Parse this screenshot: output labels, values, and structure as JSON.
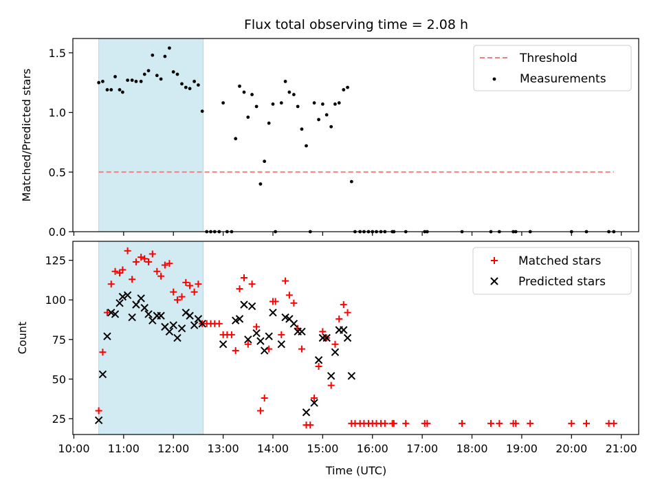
{
  "chart_data": {
    "type": "scatter",
    "title": "Flux total observing time = 2.08 h",
    "xlabel": "Time (UTC)",
    "x_ticks": [
      "10:00",
      "11:00",
      "12:00",
      "13:00",
      "14:00",
      "15:00",
      "16:00",
      "17:00",
      "18:00",
      "19:00",
      "20:00",
      "21:00"
    ],
    "xlim_hours": [
      9.98,
      21.35
    ],
    "highlight_span_hours": [
      10.5,
      12.6
    ],
    "highlight_color": "#add8e6",
    "top": {
      "ylabel": "Matched/Predicted stars",
      "ylim": [
        0,
        1.62
      ],
      "y_ticks": [
        "0.0",
        "0.5",
        "1.0",
        "1.5"
      ],
      "y_tick_values": [
        0,
        0.5,
        1.0,
        1.5
      ],
      "threshold": {
        "name": "Threshold",
        "value": 0.5,
        "x_range": [
          10.5,
          20.85
        ],
        "color": "#f08080"
      },
      "measurements": {
        "name": "Measurements",
        "color": "#000000",
        "points": [
          [
            10.5,
            1.25
          ],
          [
            10.58,
            1.26
          ],
          [
            10.67,
            1.19
          ],
          [
            10.75,
            1.19
          ],
          [
            10.83,
            1.3
          ],
          [
            10.92,
            1.19
          ],
          [
            10.98,
            1.17
          ],
          [
            11.08,
            1.27
          ],
          [
            11.17,
            1.27
          ],
          [
            11.25,
            1.26
          ],
          [
            11.35,
            1.26
          ],
          [
            11.42,
            1.32
          ],
          [
            11.5,
            1.35
          ],
          [
            11.58,
            1.48
          ],
          [
            11.67,
            1.31
          ],
          [
            11.75,
            1.28
          ],
          [
            11.83,
            1.47
          ],
          [
            11.92,
            1.54
          ],
          [
            12.0,
            1.34
          ],
          [
            12.08,
            1.32
          ],
          [
            12.17,
            1.24
          ],
          [
            12.25,
            1.21
          ],
          [
            12.33,
            1.2
          ],
          [
            12.42,
            1.26
          ],
          [
            12.5,
            1.23
          ],
          [
            12.58,
            1.01
          ],
          [
            12.67,
            0
          ],
          [
            12.75,
            0
          ],
          [
            12.83,
            0
          ],
          [
            12.92,
            0
          ],
          [
            13.0,
            1.08
          ],
          [
            13.08,
            0
          ],
          [
            13.17,
            0
          ],
          [
            13.25,
            0.78
          ],
          [
            13.33,
            1.22
          ],
          [
            13.42,
            1.17
          ],
          [
            13.5,
            0.96
          ],
          [
            13.58,
            1.15
          ],
          [
            13.67,
            1.05
          ],
          [
            13.75,
            0.4
          ],
          [
            13.83,
            0.59
          ],
          [
            13.92,
            0.91
          ],
          [
            14.0,
            1.07
          ],
          [
            14.05,
            0
          ],
          [
            14.17,
            1.08
          ],
          [
            14.25,
            1.26
          ],
          [
            14.33,
            1.17
          ],
          [
            14.42,
            1.15
          ],
          [
            14.5,
            1.05
          ],
          [
            14.58,
            0.86
          ],
          [
            14.67,
            0.72
          ],
          [
            14.75,
            0
          ],
          [
            14.83,
            1.08
          ],
          [
            14.92,
            0.94
          ],
          [
            15.0,
            1.07
          ],
          [
            15.08,
            0.98
          ],
          [
            15.17,
            0.88
          ],
          [
            15.25,
            1.07
          ],
          [
            15.33,
            1.08
          ],
          [
            15.42,
            1.19
          ],
          [
            15.5,
            1.21
          ],
          [
            15.58,
            0.42
          ],
          [
            15.65,
            0
          ],
          [
            15.75,
            0
          ],
          [
            15.83,
            0
          ],
          [
            15.92,
            0
          ],
          [
            16.0,
            0
          ],
          [
            16.08,
            0
          ],
          [
            16.17,
            0
          ],
          [
            16.25,
            0
          ],
          [
            16.4,
            0
          ],
          [
            16.43,
            0
          ],
          [
            16.67,
            0
          ],
          [
            17.05,
            0
          ],
          [
            17.1,
            0
          ],
          [
            17.8,
            0
          ],
          [
            18.38,
            0
          ],
          [
            18.55,
            0
          ],
          [
            18.83,
            0
          ],
          [
            18.88,
            0
          ],
          [
            19.17,
            0
          ],
          [
            20.0,
            0
          ],
          [
            20.3,
            0
          ],
          [
            20.75,
            0
          ],
          [
            20.85,
            0
          ]
        ]
      }
    },
    "bottom": {
      "ylabel": "Count",
      "ylim": [
        15,
        137
      ],
      "y_ticks": [
        "25",
        "50",
        "75",
        "100",
        "125"
      ],
      "y_tick_values": [
        25,
        50,
        75,
        100,
        125
      ],
      "matched": {
        "name": "Matched stars",
        "color": "#ff0000",
        "points": [
          [
            10.5,
            30
          ],
          [
            10.58,
            67
          ],
          [
            10.67,
            92
          ],
          [
            10.75,
            110
          ],
          [
            10.83,
            118
          ],
          [
            10.92,
            117
          ],
          [
            10.98,
            119
          ],
          [
            11.08,
            131
          ],
          [
            11.17,
            113
          ],
          [
            11.25,
            124
          ],
          [
            11.35,
            127
          ],
          [
            11.42,
            126
          ],
          [
            11.5,
            124
          ],
          [
            11.58,
            129
          ],
          [
            11.67,
            118
          ],
          [
            11.75,
            115
          ],
          [
            11.83,
            122
          ],
          [
            11.92,
            123
          ],
          [
            12.0,
            105
          ],
          [
            12.08,
            100
          ],
          [
            12.17,
            102
          ],
          [
            12.25,
            111
          ],
          [
            12.33,
            109
          ],
          [
            12.42,
            105
          ],
          [
            12.5,
            110
          ],
          [
            12.58,
            85
          ],
          [
            12.67,
            85
          ],
          [
            12.75,
            85
          ],
          [
            12.83,
            85
          ],
          [
            12.92,
            85
          ],
          [
            13.0,
            78
          ],
          [
            13.08,
            78
          ],
          [
            13.17,
            78
          ],
          [
            13.25,
            68
          ],
          [
            13.33,
            107
          ],
          [
            13.42,
            114
          ],
          [
            13.5,
            72
          ],
          [
            13.58,
            110
          ],
          [
            13.67,
            83
          ],
          [
            13.75,
            30
          ],
          [
            13.83,
            38
          ],
          [
            13.92,
            69
          ],
          [
            14.0,
            99
          ],
          [
            14.05,
            99
          ],
          [
            14.17,
            78
          ],
          [
            14.25,
            112
          ],
          [
            14.33,
            103
          ],
          [
            14.42,
            98
          ],
          [
            14.5,
            82
          ],
          [
            14.58,
            69
          ],
          [
            14.67,
            21
          ],
          [
            14.75,
            21
          ],
          [
            14.83,
            38
          ],
          [
            14.92,
            58
          ],
          [
            15.0,
            80
          ],
          [
            15.08,
            76
          ],
          [
            15.17,
            46
          ],
          [
            15.25,
            72
          ],
          [
            15.33,
            88
          ],
          [
            15.42,
            97
          ],
          [
            15.5,
            92
          ],
          [
            15.58,
            22
          ],
          [
            15.65,
            22
          ],
          [
            15.75,
            22
          ],
          [
            15.83,
            22
          ],
          [
            15.92,
            22
          ],
          [
            16.0,
            22
          ],
          [
            16.08,
            22
          ],
          [
            16.17,
            22
          ],
          [
            16.25,
            22
          ],
          [
            16.4,
            22
          ],
          [
            16.43,
            22
          ],
          [
            16.67,
            22
          ],
          [
            17.05,
            22
          ],
          [
            17.1,
            22
          ],
          [
            17.8,
            22
          ],
          [
            18.38,
            22
          ],
          [
            18.55,
            22
          ],
          [
            18.83,
            22
          ],
          [
            18.88,
            22
          ],
          [
            19.17,
            22
          ],
          [
            20.0,
            22
          ],
          [
            20.3,
            22
          ],
          [
            20.75,
            22
          ],
          [
            20.85,
            22
          ]
        ]
      },
      "predicted": {
        "name": "Predicted stars",
        "color": "#000000",
        "points": [
          [
            10.5,
            24
          ],
          [
            10.58,
            53
          ],
          [
            10.67,
            77
          ],
          [
            10.75,
            92
          ],
          [
            10.83,
            91
          ],
          [
            10.92,
            98
          ],
          [
            10.98,
            102
          ],
          [
            11.08,
            103
          ],
          [
            11.17,
            89
          ],
          [
            11.25,
            97
          ],
          [
            11.35,
            101
          ],
          [
            11.42,
            95
          ],
          [
            11.5,
            91
          ],
          [
            11.58,
            87
          ],
          [
            11.67,
            90
          ],
          [
            11.75,
            90
          ],
          [
            11.83,
            83
          ],
          [
            11.92,
            80
          ],
          [
            12.0,
            84
          ],
          [
            12.08,
            76
          ],
          [
            12.17,
            82
          ],
          [
            12.25,
            92
          ],
          [
            12.33,
            90
          ],
          [
            12.42,
            84
          ],
          [
            12.5,
            88
          ],
          [
            12.58,
            85
          ],
          [
            13.0,
            72
          ],
          [
            13.25,
            87
          ],
          [
            13.33,
            88
          ],
          [
            13.42,
            97
          ],
          [
            13.5,
            75
          ],
          [
            13.58,
            96
          ],
          [
            13.67,
            79
          ],
          [
            13.75,
            74
          ],
          [
            13.83,
            68
          ],
          [
            13.92,
            77
          ],
          [
            14.0,
            92
          ],
          [
            14.17,
            72
          ],
          [
            14.25,
            89
          ],
          [
            14.33,
            88
          ],
          [
            14.42,
            85
          ],
          [
            14.5,
            80
          ],
          [
            14.58,
            80
          ],
          [
            14.67,
            29
          ],
          [
            14.83,
            35
          ],
          [
            14.92,
            62
          ],
          [
            15.0,
            76
          ],
          [
            15.08,
            76
          ],
          [
            15.17,
            52
          ],
          [
            15.25,
            67
          ],
          [
            15.33,
            81
          ],
          [
            15.42,
            81
          ],
          [
            15.5,
            76
          ],
          [
            15.58,
            52
          ]
        ]
      }
    }
  }
}
